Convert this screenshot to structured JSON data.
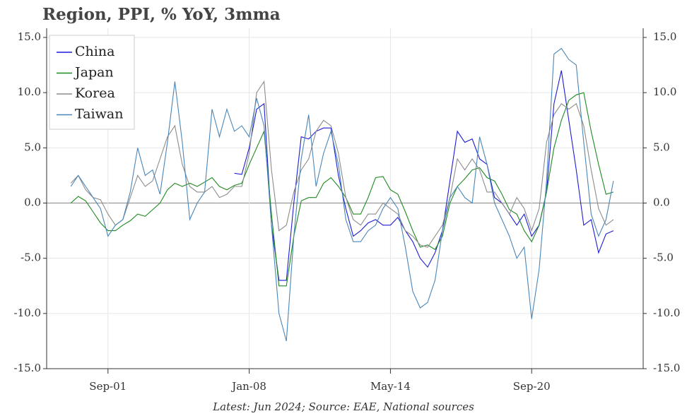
{
  "chart_data": {
    "type": "line",
    "title": "Region, PPI, % YoY, 3mma",
    "footnote": "Latest: Jun 2024; Source: EAE, National sources",
    "x": [
      "Jan-00",
      "May-00",
      "Sep-00",
      "Jan-01",
      "May-01",
      "Sep-01",
      "Jan-02",
      "May-02",
      "Sep-02",
      "Jan-03",
      "May-03",
      "Sep-03",
      "Jan-04",
      "May-04",
      "Sep-04",
      "Jan-05",
      "May-05",
      "Sep-05",
      "Jan-06",
      "May-06",
      "Sep-06",
      "Jan-07",
      "May-07",
      "Sep-07",
      "Jan-08",
      "May-08",
      "Sep-08",
      "Jan-09",
      "May-09",
      "Sep-09",
      "Jan-10",
      "May-10",
      "Sep-10",
      "Jan-11",
      "May-11",
      "Sep-11",
      "Jan-12",
      "May-12",
      "Sep-12",
      "Jan-13",
      "May-13",
      "Sep-13",
      "Jan-14",
      "May-14",
      "Sep-14",
      "Jan-15",
      "May-15",
      "Sep-15",
      "Jan-16",
      "May-16",
      "Sep-16",
      "Jan-17",
      "May-17",
      "Sep-17",
      "Jan-18",
      "May-18",
      "Sep-18",
      "Jan-19",
      "May-19",
      "Sep-19",
      "Jan-20",
      "May-20",
      "Sep-20",
      "Jan-21",
      "May-21",
      "Sep-21",
      "Jan-22",
      "May-22",
      "Sep-22",
      "Jan-23",
      "May-23",
      "Sep-23",
      "Jan-24",
      "May-24"
    ],
    "xlim": [
      "Dec-98",
      "Sep-25"
    ],
    "xticks": [
      "Sep-01",
      "Jan-08",
      "May-14",
      "Sep-20"
    ],
    "ylim": [
      -15,
      15
    ],
    "yticks": [
      {
        "value": -15,
        "label": "-15.0"
      },
      {
        "value": -10,
        "label": "-10.0"
      },
      {
        "value": -5,
        "label": "-5.0"
      },
      {
        "value": 0,
        "label": "0.0"
      },
      {
        "value": 5,
        "label": "5.0"
      },
      {
        "value": 10,
        "label": "10.0"
      },
      {
        "value": 15,
        "label": "15.0"
      }
    ],
    "grid": true,
    "legend": "upper left",
    "series": [
      {
        "name": "China",
        "color": "#1c1cd6",
        "values": [
          null,
          null,
          null,
          null,
          null,
          null,
          null,
          null,
          null,
          null,
          null,
          null,
          null,
          null,
          null,
          null,
          null,
          null,
          null,
          null,
          null,
          null,
          2.7,
          2.6,
          5.0,
          8.5,
          9.0,
          -2.0,
          -7.0,
          -7.0,
          0.0,
          6.0,
          5.8,
          6.5,
          6.8,
          6.8,
          2.5,
          -0.5,
          -3.0,
          -2.5,
          -1.8,
          -1.5,
          -2.0,
          -2.0,
          -1.3,
          -2.5,
          -3.5,
          -5.0,
          -5.8,
          -4.5,
          -2.5,
          2.0,
          6.5,
          5.5,
          5.8,
          4.0,
          3.5,
          0.5,
          0.0,
          -1.0,
          -2.0,
          -1.0,
          -3.0,
          -2.0,
          1.0,
          9.0,
          12.0,
          7.5,
          3.0,
          -2.0,
          -1.5,
          -4.5,
          -2.8,
          -2.5
        ]
      },
      {
        "name": "Japan",
        "color": "#1f8a1f",
        "values": [
          0.0,
          0.6,
          0.2,
          -0.8,
          -1.8,
          -2.5,
          -2.5,
          -2.0,
          -1.6,
          -1.0,
          -1.2,
          -0.6,
          0.0,
          1.2,
          1.8,
          1.5,
          1.8,
          1.5,
          1.9,
          2.3,
          1.5,
          1.2,
          1.6,
          1.8,
          3.5,
          5.0,
          6.5,
          -1.0,
          -7.5,
          -7.5,
          -3.0,
          0.2,
          0.5,
          0.5,
          1.8,
          2.3,
          1.5,
          0.5,
          -1.0,
          -1.0,
          0.5,
          2.3,
          2.4,
          1.2,
          0.8,
          -0.8,
          -2.5,
          -4.0,
          -3.8,
          -4.2,
          -3.0,
          0.0,
          1.5,
          2.2,
          3.0,
          3.2,
          2.3,
          2.0,
          0.8,
          -0.6,
          -1.0,
          -2.5,
          -3.5,
          -2.0,
          1.0,
          5.0,
          7.5,
          9.3,
          9.8,
          10.0,
          6.5,
          3.5,
          0.8,
          1.0
        ]
      },
      {
        "name": "Korea",
        "color": "#8c8c8c",
        "values": [
          1.8,
          2.5,
          1.2,
          0.5,
          0.3,
          -1.0,
          -2.0,
          -1.5,
          0.5,
          2.5,
          1.5,
          2.0,
          4.0,
          6.0,
          7.0,
          3.5,
          1.5,
          1.0,
          1.0,
          1.5,
          0.5,
          0.8,
          1.5,
          1.5,
          4.5,
          10.0,
          11.0,
          3.0,
          -2.5,
          -2.0,
          1.0,
          3.0,
          4.0,
          6.5,
          7.5,
          7.0,
          4.5,
          0.5,
          -1.5,
          -2.0,
          -1.0,
          -1.0,
          0.0,
          -0.5,
          -1.0,
          -2.5,
          -3.0,
          -3.8,
          -4.0,
          -3.0,
          -2.0,
          0.5,
          4.0,
          3.0,
          4.0,
          3.0,
          1.0,
          1.0,
          0.0,
          -1.0,
          0.5,
          -0.5,
          -2.5,
          -0.5,
          5.5,
          8.0,
          9.0,
          8.5,
          9.0,
          7.0,
          3.0,
          -0.5,
          -2.0,
          -1.5
        ]
      },
      {
        "name": "Taiwan",
        "color": "#4a86b8",
        "values": [
          1.5,
          2.5,
          1.5,
          0.5,
          -0.5,
          -3.0,
          -2.0,
          -1.5,
          1.0,
          5.0,
          2.5,
          3.0,
          0.8,
          5.5,
          11.0,
          5.5,
          -1.5,
          0.0,
          1.0,
          8.5,
          6.0,
          8.5,
          6.5,
          7.0,
          6.0,
          9.5,
          7.0,
          -2.0,
          -10.0,
          -12.5,
          -3.0,
          4.0,
          8.0,
          1.5,
          4.5,
          6.5,
          3.5,
          -1.5,
          -3.5,
          -3.5,
          -2.5,
          -2.0,
          -0.5,
          0.5,
          -0.5,
          -4.0,
          -8.0,
          -9.5,
          -9.0,
          -7.0,
          -2.5,
          0.5,
          1.5,
          0.5,
          0.0,
          6.0,
          3.5,
          0.0,
          -1.5,
          -3.0,
          -5.0,
          -4.0,
          -10.5,
          -6.0,
          2.0,
          13.5,
          14.0,
          13.0,
          12.5,
          5.5,
          -1.0,
          -3.0,
          -1.5,
          2.0
        ]
      }
    ]
  }
}
